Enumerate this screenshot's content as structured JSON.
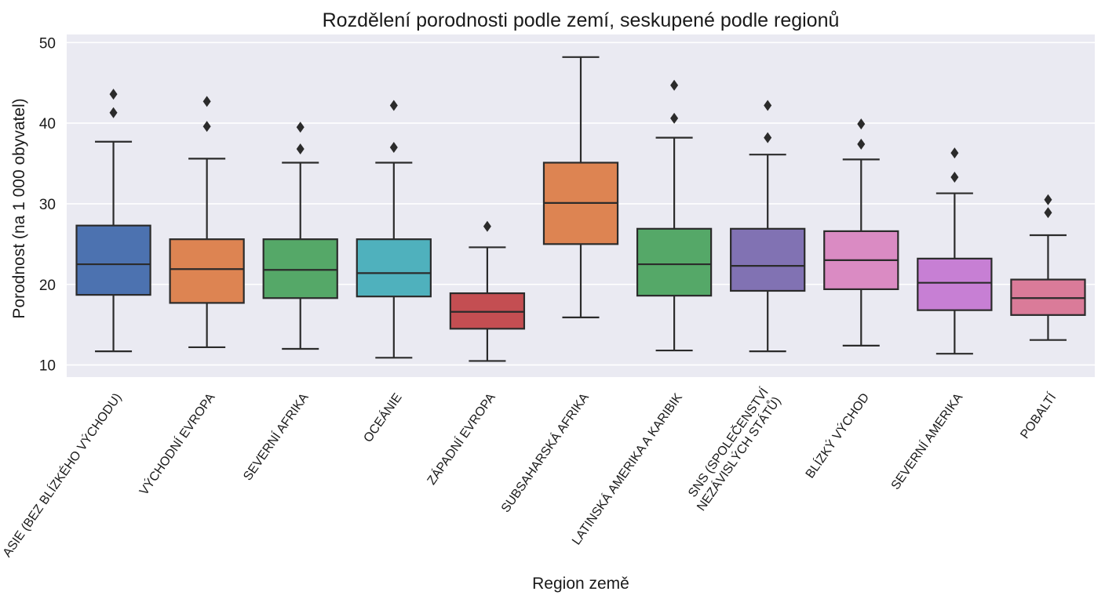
{
  "chart_data": {
    "type": "box",
    "title": "Rozdělení porodnosti podle zemí, seskupené podle regionů",
    "xlabel": "Region země",
    "ylabel": "Porodnost (na 1 000 obyvatel)",
    "ylim": [
      8.5,
      51
    ],
    "yticks": [
      10,
      20,
      30,
      40,
      50
    ],
    "grid": true,
    "legend": "none",
    "boxes": [
      {
        "category": "ASIE (BEZ BLÍZKÉHO VÝCHODU)",
        "color": "#4c72b0",
        "whisker_low": 11.7,
        "q1": 18.7,
        "median": 22.5,
        "q3": 27.3,
        "whisker_high": 37.7,
        "outliers": [
          41.3,
          43.6
        ]
      },
      {
        "category": "VÝCHODNÍ EVROPA",
        "color": "#dd8452",
        "whisker_low": 12.2,
        "q1": 17.7,
        "median": 21.9,
        "q3": 25.6,
        "whisker_high": 35.6,
        "outliers": [
          39.6,
          42.7
        ]
      },
      {
        "category": "SEVERNÍ AFRIKA",
        "color": "#55a868",
        "whisker_low": 12.0,
        "q1": 18.3,
        "median": 21.8,
        "q3": 25.6,
        "whisker_high": 35.1,
        "outliers": [
          36.8,
          39.5
        ]
      },
      {
        "category": "OCEÁNIE",
        "color": "#4fb1bd",
        "whisker_low": 10.9,
        "q1": 18.5,
        "median": 21.4,
        "q3": 25.6,
        "whisker_high": 35.1,
        "outliers": [
          37.0,
          42.2
        ]
      },
      {
        "category": "ZÁPADNÍ EVROPA",
        "color": "#c44e52",
        "whisker_low": 10.5,
        "q1": 14.5,
        "median": 16.6,
        "q3": 18.9,
        "whisker_high": 24.6,
        "outliers": [
          27.2
        ]
      },
      {
        "category": "SUBSAHARSKÁ AFRIKA",
        "color": "#dd8452",
        "whisker_low": 15.9,
        "q1": 25.0,
        "median": 30.1,
        "q3": 35.1,
        "whisker_high": 48.2,
        "outliers": []
      },
      {
        "category": "LATINSKÁ AMERIKA A KARIBIK",
        "color": "#55a868",
        "whisker_low": 11.8,
        "q1": 18.6,
        "median": 22.5,
        "q3": 26.9,
        "whisker_high": 38.2,
        "outliers": [
          40.6,
          44.7
        ]
      },
      {
        "category": "SNS (SPOLEČENSTVÍ NEZÁVISLÝCH STÁTŮ)",
        "color": "#8172b3",
        "whisker_low": 11.7,
        "q1": 19.2,
        "median": 22.3,
        "q3": 26.9,
        "whisker_high": 36.1,
        "outliers": [
          38.2,
          42.2
        ]
      },
      {
        "category": "BLÍZKÝ VÝCHOD",
        "color": "#da8bc3",
        "whisker_low": 12.4,
        "q1": 19.4,
        "median": 23.0,
        "q3": 26.6,
        "whisker_high": 35.5,
        "outliers": [
          37.4,
          39.9
        ]
      },
      {
        "category": "SEVERNÍ AMERIKA",
        "color": "#c77fd4",
        "whisker_low": 11.4,
        "q1": 16.8,
        "median": 20.2,
        "q3": 23.2,
        "whisker_high": 31.3,
        "outliers": [
          33.3,
          36.3
        ]
      },
      {
        "category": "POBALTÍ",
        "color": "#da7b99",
        "whisker_low": 13.1,
        "q1": 16.2,
        "median": 18.3,
        "q3": 20.6,
        "whisker_high": 26.1,
        "outliers": [
          28.9,
          30.5
        ]
      }
    ]
  }
}
